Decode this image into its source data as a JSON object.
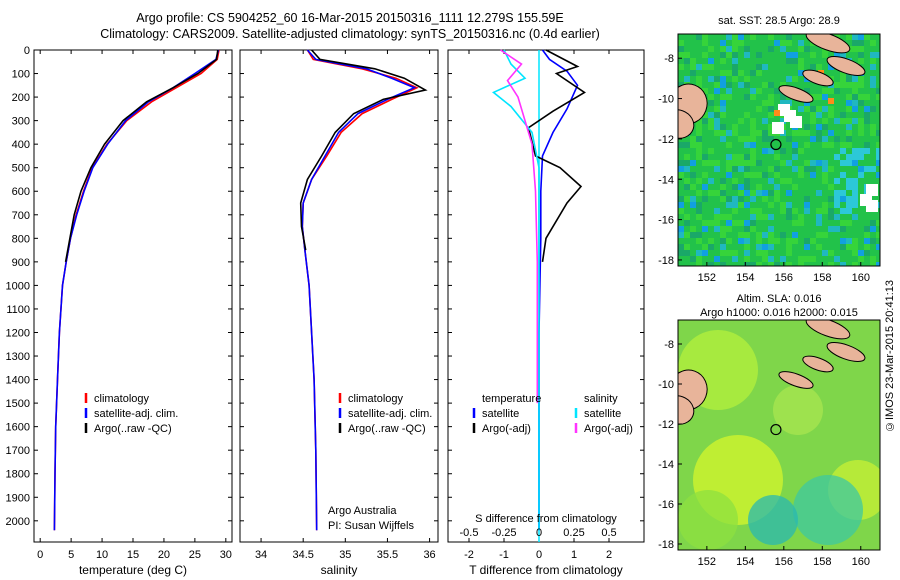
{
  "title": {
    "line1": "Argo profile: CS 5904252_60 16-Mar-2015 20150316_1111 12.279S 155.59E",
    "line2": "Climatology: CARS2009. Satellite-adjusted climatology: synTS_20150316.nc (0.4d earlier)"
  },
  "colors": {
    "climatology": "#ff0000",
    "satellite": "#0000ff",
    "argo": "#000000",
    "sal_satellite": "#00e5ff",
    "sal_argo": "#ff33ff",
    "land": "#e8b49a"
  },
  "chart_data": [
    {
      "type": "line",
      "name": "temperature-profile",
      "xlabel": "temperature (deg C)",
      "ylabel": "",
      "xlim": [
        -1,
        31
      ],
      "ylim": [
        2090,
        0
      ],
      "xticks": [
        0,
        5,
        10,
        15,
        20,
        25,
        30
      ],
      "yticks": [
        0,
        100,
        200,
        300,
        400,
        500,
        600,
        700,
        800,
        900,
        1000,
        1100,
        1200,
        1300,
        1400,
        1500,
        1600,
        1700,
        1800,
        1900,
        2000
      ],
      "legend": [
        "climatology",
        "satellite-adj. clim.",
        "Argo(..raw -QC)"
      ],
      "series": [
        {
          "name": "climatology",
          "color": "#ff0000",
          "x": [
            28.9,
            28.6,
            26,
            22,
            18,
            14,
            10.8,
            8.4,
            7.0,
            5.8,
            4.9,
            4.2,
            3.6,
            3.1,
            2.8,
            2.5,
            2.4,
            2.3
          ],
          "y": [
            0,
            40,
            100,
            160,
            220,
            300,
            400,
            500,
            600,
            700,
            800,
            900,
            1000,
            1200,
            1400,
            1600,
            1800,
            2040
          ]
        },
        {
          "name": "satellite-adj. clim.",
          "color": "#0000ff",
          "x": [
            28.8,
            28.4,
            25,
            21.5,
            17.5,
            13.8,
            10.9,
            8.5,
            7.1,
            5.9,
            4.9,
            4.2,
            3.6,
            3.1,
            2.8,
            2.5,
            2.4,
            2.3
          ],
          "y": [
            0,
            40,
            100,
            160,
            220,
            300,
            400,
            500,
            600,
            700,
            800,
            900,
            1000,
            1200,
            1400,
            1600,
            1800,
            2040
          ]
        },
        {
          "name": "Argo",
          "color": "#000000",
          "x": [
            28.7,
            28.5,
            25.5,
            21.5,
            17.2,
            13.4,
            10.4,
            8.2,
            6.6,
            5.5,
            4.8,
            4.1
          ],
          "y": [
            0,
            40,
            100,
            160,
            220,
            300,
            400,
            500,
            600,
            700,
            800,
            900
          ]
        }
      ]
    },
    {
      "type": "line",
      "name": "salinity-profile",
      "xlabel": "salinity",
      "ylabel": "",
      "xlim": [
        33.75,
        36.1
      ],
      "ylim": [
        2090,
        0
      ],
      "xticks": [
        34,
        34.5,
        35,
        35.5,
        36
      ],
      "legend": [
        "climatology",
        "satellite-adj. clim.",
        "Argo(..raw -QC)"
      ],
      "annotation": [
        "Argo Australia",
        "PI: Susan Wijffels"
      ],
      "series": [
        {
          "name": "climatology",
          "color": "#ff0000",
          "x": [
            34.55,
            34.62,
            35.2,
            35.6,
            35.85,
            35.55,
            35.2,
            34.95,
            34.78,
            34.6,
            34.5,
            34.49,
            34.52,
            34.57,
            34.6,
            34.63,
            34.65,
            34.66
          ],
          "y": [
            0,
            40,
            80,
            120,
            160,
            210,
            270,
            350,
            450,
            550,
            650,
            750,
            850,
            1000,
            1200,
            1400,
            1700,
            2040
          ]
        },
        {
          "name": "satellite-adj. clim.",
          "color": "#0000ff",
          "x": [
            34.55,
            34.65,
            35.25,
            35.55,
            35.82,
            35.5,
            35.15,
            34.92,
            34.76,
            34.6,
            34.5,
            34.49,
            34.52,
            34.57,
            34.6,
            34.63,
            34.65,
            34.66
          ],
          "y": [
            0,
            40,
            80,
            120,
            160,
            210,
            270,
            350,
            450,
            550,
            650,
            750,
            850,
            1000,
            1200,
            1400,
            1700,
            2040
          ]
        },
        {
          "name": "Argo",
          "color": "#000000",
          "x": [
            34.6,
            34.7,
            35.35,
            35.7,
            35.95,
            35.45,
            35.1,
            34.88,
            34.72,
            34.55,
            34.47,
            34.48,
            34.53
          ],
          "y": [
            0,
            40,
            80,
            120,
            170,
            210,
            270,
            350,
            450,
            550,
            650,
            750,
            850
          ]
        }
      ]
    },
    {
      "type": "line",
      "name": "difference-profile",
      "xlabel": "T difference from climatology",
      "xlabel_top": "S difference from climatology",
      "xlim": [
        -2.6,
        3.0
      ],
      "ylim": [
        2090,
        0
      ],
      "xticks": [
        -2,
        -1,
        0,
        1,
        2
      ],
      "xticks_top_labels": [
        "-0.5",
        "-0.25",
        "0",
        "0.25",
        "0.5"
      ],
      "xticks_top_values": [
        -2,
        -1,
        0,
        1,
        2
      ],
      "legend_temperature_header": "temperature",
      "legend_salinity_header": "salinity",
      "legend": [
        "satellite",
        "Argo(-adj)",
        "satellite",
        "Argo(-adj)"
      ],
      "series": [
        {
          "name": "T satellite",
          "color": "#0000ff",
          "x": [
            0.1,
            0.3,
            0.8,
            1.1,
            0.8,
            0.4,
            0.1,
            0.05,
            0.05,
            0.0,
            0.0
          ],
          "y": [
            0,
            40,
            90,
            150,
            250,
            350,
            450,
            600,
            800,
            1200,
            2040
          ]
        },
        {
          "name": "T Argo",
          "color": "#000000",
          "x": [
            0.2,
            1.1,
            0.5,
            1.3,
            0.4,
            -0.3,
            -0.1,
            0.6,
            1.2,
            0.8,
            0.2,
            0.1
          ],
          "y": [
            0,
            70,
            100,
            180,
            260,
            330,
            450,
            500,
            580,
            650,
            800,
            900
          ]
        },
        {
          "name": "S satellite",
          "color": "#00e5ff",
          "x": [
            -1.0,
            -0.8,
            -0.4,
            -1.3,
            -0.8,
            -0.2,
            0.0,
            0.0,
            0.0,
            0.0
          ],
          "y": [
            0,
            60,
            120,
            180,
            240,
            350,
            500,
            800,
            1200,
            2040
          ]
        },
        {
          "name": "S Argo",
          "color": "#ff33ff",
          "x": [
            -1.1,
            -0.5,
            -0.9,
            -0.6,
            -0.4,
            -0.2,
            -0.1,
            -0.05,
            -0.05
          ],
          "y": [
            0,
            60,
            130,
            200,
            300,
            400,
            600,
            900,
            1500
          ]
        }
      ]
    },
    {
      "type": "heatmap",
      "name": "sst-map",
      "title": "sat. SST: 28.5  Argo: 28.9",
      "xlim": [
        150.5,
        161
      ],
      "ylim": [
        -18.3,
        -6.8
      ],
      "xticks": [
        152,
        154,
        156,
        158,
        160
      ],
      "yticks": [
        -8,
        -10,
        -12,
        -14,
        -16,
        -18
      ],
      "float_position": {
        "lon": 155.59,
        "lat": -12.279
      }
    },
    {
      "type": "heatmap",
      "name": "sla-map",
      "title_line1": "Altim. SLA: 0.016",
      "title_line2": "Argo h1000: 0.016  h2000: 0.015",
      "xlim": [
        150.5,
        161
      ],
      "ylim": [
        -18.3,
        -6.8
      ],
      "xticks": [
        152,
        154,
        156,
        158,
        160
      ],
      "yticks": [
        -8,
        -10,
        -12,
        -14,
        -16,
        -18
      ],
      "float_position": {
        "lon": 155.59,
        "lat": -12.279
      }
    }
  ],
  "footer": "©IMOS 23-Mar-2015 20:41:13"
}
